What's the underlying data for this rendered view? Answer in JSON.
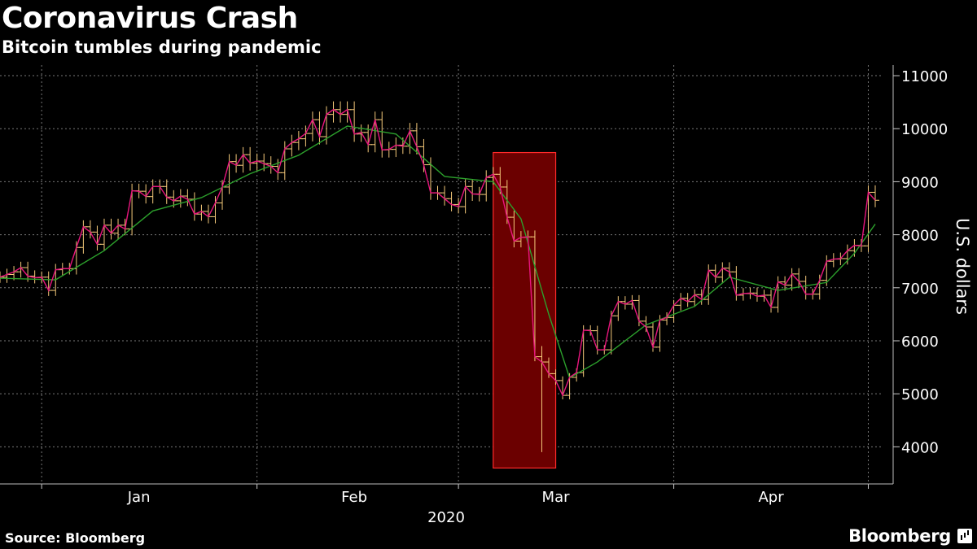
{
  "header": {
    "title": "Coronavirus Crash",
    "subtitle": "Bitcoin tumbles during pandemic"
  },
  "footer": {
    "source": "Source: Bloomberg",
    "brand": "Bloomberg"
  },
  "colors": {
    "background": "#000000",
    "close_line": "#e8157d",
    "moving_average": "#2ca02c",
    "candle": "#f5c97a",
    "highlight_fill": "#6b0000",
    "highlight_border": "#ff2a2a",
    "grid": "#777777",
    "text": "#ffffff"
  },
  "chart_data": {
    "type": "line",
    "title": "Coronavirus Crash",
    "subtitle": "Bitcoin tumbles during pandemic",
    "ylabel": "U.S. dollars",
    "xlabel": "2020",
    "ylim": [
      3300,
      11200
    ],
    "yticks": [
      4000,
      5000,
      6000,
      7000,
      8000,
      9000,
      10000,
      11000
    ],
    "xlim": [
      "2019-12-26",
      "2020-04-30"
    ],
    "month_labels": [
      {
        "label": "Jan",
        "date": "2020-01-15"
      },
      {
        "label": "Feb",
        "date": "2020-02-15"
      },
      {
        "label": "Mar",
        "date": "2020-03-15"
      },
      {
        "label": "Apr",
        "date": "2020-04-15"
      }
    ],
    "month_boundaries": [
      "2020-01-01",
      "2020-02-01",
      "2020-03-01",
      "2020-04-01",
      "2020-04-29"
    ],
    "grid": true,
    "highlight": {
      "start": "2020-03-06",
      "end": "2020-03-15",
      "y_low": 3600,
      "y_high": 9550
    },
    "series": [
      {
        "type": "line",
        "points": [
          [
            "2019-12-26",
            7200
          ],
          [
            "2019-12-27",
            7250
          ],
          [
            "2019-12-28",
            7300
          ],
          [
            "2019-12-29",
            7380
          ],
          [
            "2019-12-30",
            7220
          ],
          [
            "2019-12-31",
            7190
          ],
          [
            "2020-01-01",
            7200
          ],
          [
            "2020-01-02",
            6950
          ],
          [
            "2020-01-03",
            7340
          ],
          [
            "2020-01-04",
            7360
          ],
          [
            "2020-01-05",
            7360
          ],
          [
            "2020-01-06",
            7760
          ],
          [
            "2020-01-07",
            8150
          ],
          [
            "2020-01-08",
            8050
          ],
          [
            "2020-01-09",
            7820
          ],
          [
            "2020-01-10",
            8180
          ],
          [
            "2020-01-11",
            8030
          ],
          [
            "2020-01-12",
            8180
          ],
          [
            "2020-01-13",
            8110
          ],
          [
            "2020-01-14",
            8830
          ],
          [
            "2020-01-15",
            8820
          ],
          [
            "2020-01-16",
            8720
          ],
          [
            "2020-01-17",
            8910
          ],
          [
            "2020-01-18",
            8910
          ],
          [
            "2020-01-19",
            8710
          ],
          [
            "2020-01-20",
            8640
          ],
          [
            "2020-01-21",
            8730
          ],
          [
            "2020-01-22",
            8670
          ],
          [
            "2020-01-23",
            8390
          ],
          [
            "2020-01-24",
            8440
          ],
          [
            "2020-01-25",
            8340
          ],
          [
            "2020-01-26",
            8600
          ],
          [
            "2020-01-27",
            8900
          ],
          [
            "2020-01-28",
            9380
          ],
          [
            "2020-01-29",
            9310
          ],
          [
            "2020-01-30",
            9510
          ],
          [
            "2020-01-31",
            9350
          ],
          [
            "2020-02-01",
            9390
          ],
          [
            "2020-02-02",
            9340
          ],
          [
            "2020-02-03",
            9290
          ],
          [
            "2020-02-04",
            9170
          ],
          [
            "2020-02-05",
            9620
          ],
          [
            "2020-02-06",
            9740
          ],
          [
            "2020-02-07",
            9810
          ],
          [
            "2020-02-08",
            9910
          ],
          [
            "2020-02-09",
            10170
          ],
          [
            "2020-02-10",
            9850
          ],
          [
            "2020-02-11",
            10270
          ],
          [
            "2020-02-12",
            10360
          ],
          [
            "2020-02-13",
            10270
          ],
          [
            "2020-02-14",
            10360
          ],
          [
            "2020-02-15",
            9900
          ],
          [
            "2020-02-16",
            9930
          ],
          [
            "2020-02-17",
            9700
          ],
          [
            "2020-02-18",
            10170
          ],
          [
            "2020-02-19",
            9600
          ],
          [
            "2020-02-20",
            9610
          ],
          [
            "2020-02-21",
            9690
          ],
          [
            "2020-02-22",
            9670
          ],
          [
            "2020-02-23",
            9960
          ],
          [
            "2020-02-24",
            9660
          ],
          [
            "2020-02-25",
            9320
          ],
          [
            "2020-02-26",
            8790
          ],
          [
            "2020-02-27",
            8790
          ],
          [
            "2020-02-28",
            8680
          ],
          [
            "2020-02-29",
            8570
          ],
          [
            "2020-03-01",
            8530
          ],
          [
            "2020-03-02",
            8910
          ],
          [
            "2020-03-03",
            8770
          ],
          [
            "2020-03-04",
            8760
          ],
          [
            "2020-03-05",
            9080
          ],
          [
            "2020-03-06",
            9140
          ],
          [
            "2020-03-07",
            8900
          ],
          [
            "2020-03-08",
            8330
          ],
          [
            "2020-03-09",
            7880
          ],
          [
            "2020-03-10",
            7950
          ],
          [
            "2020-03-11",
            7960
          ],
          [
            "2020-03-12",
            5700
          ],
          [
            "2020-03-13",
            5600
          ],
          [
            "2020-03-14",
            5380
          ],
          [
            "2020-03-15",
            5250
          ],
          [
            "2020-03-16",
            4970
          ],
          [
            "2020-03-17",
            5310
          ],
          [
            "2020-03-18",
            5400
          ],
          [
            "2020-03-19",
            6200
          ],
          [
            "2020-03-20",
            6190
          ],
          [
            "2020-03-21",
            5830
          ],
          [
            "2020-03-22",
            5830
          ],
          [
            "2020-03-23",
            6470
          ],
          [
            "2020-03-24",
            6740
          ],
          [
            "2020-03-25",
            6690
          ],
          [
            "2020-03-26",
            6760
          ],
          [
            "2020-03-27",
            6370
          ],
          [
            "2020-03-28",
            6260
          ],
          [
            "2020-03-29",
            5880
          ],
          [
            "2020-03-30",
            6390
          ],
          [
            "2020-03-31",
            6440
          ],
          [
            "2020-04-01",
            6670
          ],
          [
            "2020-04-02",
            6800
          ],
          [
            "2020-04-03",
            6740
          ],
          [
            "2020-04-04",
            6870
          ],
          [
            "2020-04-05",
            6780
          ],
          [
            "2020-04-06",
            7330
          ],
          [
            "2020-04-07",
            7200
          ],
          [
            "2020-04-08",
            7370
          ],
          [
            "2020-04-09",
            7300
          ],
          [
            "2020-04-10",
            6860
          ],
          [
            "2020-04-11",
            6890
          ],
          [
            "2020-04-12",
            6900
          ],
          [
            "2020-04-13",
            6840
          ],
          [
            "2020-04-14",
            6860
          ],
          [
            "2020-04-15",
            6630
          ],
          [
            "2020-04-16",
            7110
          ],
          [
            "2020-04-17",
            7050
          ],
          [
            "2020-04-18",
            7260
          ],
          [
            "2020-04-19",
            7120
          ],
          [
            "2020-04-20",
            6880
          ],
          [
            "2020-04-21",
            6880
          ],
          [
            "2020-04-22",
            7140
          ],
          [
            "2020-04-23",
            7500
          ],
          [
            "2020-04-24",
            7540
          ],
          [
            "2020-04-25",
            7550
          ],
          [
            "2020-04-26",
            7700
          ],
          [
            "2020-04-27",
            7800
          ],
          [
            "2020-04-28",
            7790
          ],
          [
            "2020-04-29",
            8800
          ],
          [
            "2020-04-30",
            8650
          ]
        ]
      },
      {
        "type": "moving_average",
        "points": [
          [
            "2019-12-26",
            7180
          ],
          [
            "2020-01-03",
            7150
          ],
          [
            "2020-01-10",
            7700
          ],
          [
            "2020-01-17",
            8450
          ],
          [
            "2020-01-24",
            8700
          ],
          [
            "2020-01-31",
            9150
          ],
          [
            "2020-02-07",
            9500
          ],
          [
            "2020-02-14",
            10050
          ],
          [
            "2020-02-21",
            9900
          ],
          [
            "2020-02-28",
            9100
          ],
          [
            "2020-03-06",
            9000
          ],
          [
            "2020-03-10",
            8300
          ],
          [
            "2020-03-14",
            6500
          ],
          [
            "2020-03-17",
            5300
          ],
          [
            "2020-03-21",
            5600
          ],
          [
            "2020-03-28",
            6300
          ],
          [
            "2020-04-04",
            6650
          ],
          [
            "2020-04-09",
            7200
          ],
          [
            "2020-04-16",
            6950
          ],
          [
            "2020-04-23",
            7100
          ],
          [
            "2020-04-27",
            7650
          ],
          [
            "2020-04-30",
            8200
          ]
        ]
      }
    ]
  }
}
